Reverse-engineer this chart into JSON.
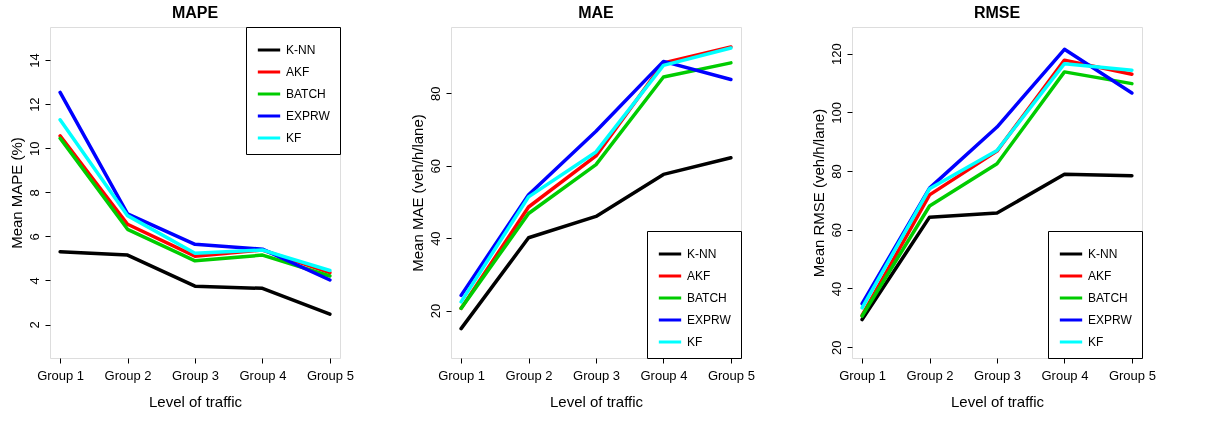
{
  "chart_data": [
    {
      "type": "line",
      "title": "MAPE",
      "xlabel": "Level of traffic",
      "ylabel": "Mean MAPE (%)",
      "categories": [
        "Group 1",
        "Group 2",
        "Group 3",
        "Group 4",
        "Group 5"
      ],
      "ylim": [
        0.48,
        15.5
      ],
      "yticks": [
        2,
        4,
        6,
        8,
        10,
        12,
        14
      ],
      "grid": false,
      "legend": "top right",
      "marker": "none",
      "line_style": "solid",
      "series": [
        {
          "name": "K-NN",
          "color": "#000000",
          "values": [
            5.3,
            5.15,
            3.74,
            3.64,
            2.47
          ]
        },
        {
          "name": "AKF",
          "color": "#ff0000",
          "values": [
            10.56,
            6.55,
            5.1,
            5.38,
            4.35
          ]
        },
        {
          "name": "BATCH",
          "color": "#00cc00",
          "values": [
            10.45,
            6.32,
            4.89,
            5.15,
            4.2
          ]
        },
        {
          "name": "EXPRW",
          "color": "#0000ff",
          "values": [
            12.53,
            7.02,
            5.64,
            5.42,
            4.02
          ]
        },
        {
          "name": "KF",
          "color": "#00ffff",
          "values": [
            11.29,
            6.94,
            5.23,
            5.38,
            4.45
          ]
        }
      ]
    },
    {
      "type": "line",
      "title": "MAE",
      "xlabel": "Level of traffic",
      "ylabel": "Mean MAE (veh/h/lane)",
      "categories": [
        "Group 1",
        "Group 2",
        "Group 3",
        "Group 4",
        "Group 5"
      ],
      "ylim": [
        6.9,
        98.3
      ],
      "yticks": [
        20,
        40,
        60,
        80
      ],
      "grid": false,
      "legend": "bottom right",
      "marker": "none",
      "line_style": "solid",
      "series": [
        {
          "name": "K-NN",
          "color": "#000000",
          "values": [
            15.0,
            40.1,
            46.0,
            57.6,
            62.2
          ]
        },
        {
          "name": "AKF",
          "color": "#ff0000",
          "values": [
            20.6,
            48.6,
            62.7,
            88.4,
            92.8
          ]
        },
        {
          "name": "BATCH",
          "color": "#00cc00",
          "values": [
            20.6,
            46.8,
            60.3,
            84.5,
            88.4
          ]
        },
        {
          "name": "EXPRW",
          "color": "#0000ff",
          "values": [
            24.2,
            52.0,
            69.5,
            88.8,
            83.8
          ]
        },
        {
          "name": "KF",
          "color": "#00ffff",
          "values": [
            22.4,
            51.4,
            63.8,
            87.7,
            92.5
          ]
        }
      ]
    },
    {
      "type": "line",
      "title": "RMSE",
      "xlabel": "Level of traffic",
      "ylabel": "Mean RMSE (veh/h/lane)",
      "categories": [
        "Group 1",
        "Group 2",
        "Group 3",
        "Group 4",
        "Group 5"
      ],
      "ylim": [
        16.3,
        129.1
      ],
      "yticks": [
        20,
        40,
        60,
        80,
        100,
        120
      ],
      "grid": false,
      "legend": "bottom right",
      "marker": "none",
      "line_style": "solid",
      "series": [
        {
          "name": "K-NN",
          "color": "#000000",
          "values": [
            29.4,
            64.3,
            65.7,
            78.9,
            78.4
          ]
        },
        {
          "name": "AKF",
          "color": "#ff0000",
          "values": [
            30.8,
            71.9,
            86.8,
            117.8,
            113.0
          ]
        },
        {
          "name": "BATCH",
          "color": "#00cc00",
          "values": [
            30.6,
            68.1,
            82.5,
            113.8,
            109.8
          ]
        },
        {
          "name": "EXPRW",
          "color": "#0000ff",
          "values": [
            34.8,
            74.2,
            95.0,
            121.5,
            106.6
          ]
        },
        {
          "name": "KF",
          "color": "#00ffff",
          "values": [
            33.4,
            74.0,
            87.0,
            116.6,
            114.4
          ]
        }
      ]
    }
  ]
}
